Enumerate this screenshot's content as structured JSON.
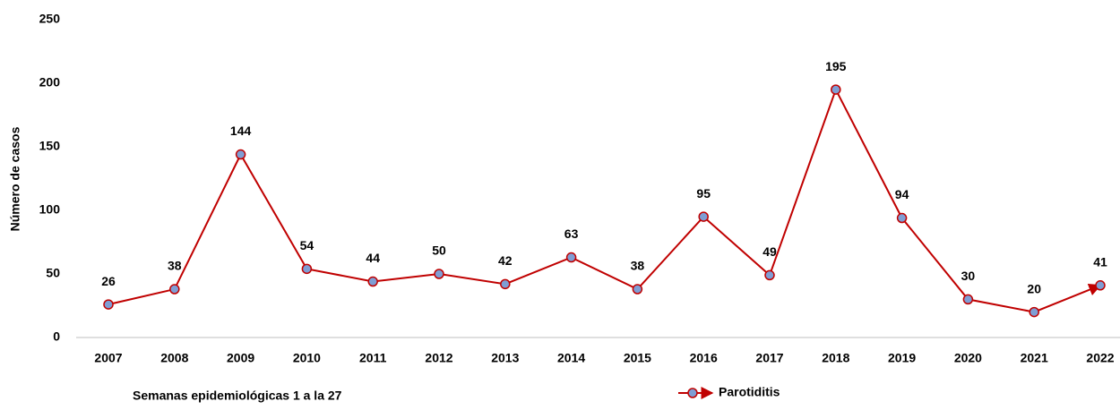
{
  "chart_data": {
    "type": "line",
    "ylabel": "Número de casos",
    "annotation": "Semanas epidemiológicas 1 a la 27",
    "categories": [
      "2007",
      "2008",
      "2009",
      "2010",
      "2011",
      "2012",
      "2013",
      "2014",
      "2015",
      "2016",
      "2017",
      "2018",
      "2019",
      "2020",
      "2021",
      "2022"
    ],
    "series": [
      {
        "name": "Parotiditis",
        "color": "#c00000",
        "marker_color": "#7f9ed4",
        "values": [
          26,
          38,
          144,
          54,
          44,
          50,
          42,
          63,
          38,
          95,
          49,
          195,
          94,
          30,
          20,
          41
        ]
      }
    ],
    "ylim": [
      0,
      250
    ],
    "yticks": [
      0,
      50,
      100,
      150,
      200,
      250
    ],
    "grid": false,
    "legend": "bottom"
  }
}
